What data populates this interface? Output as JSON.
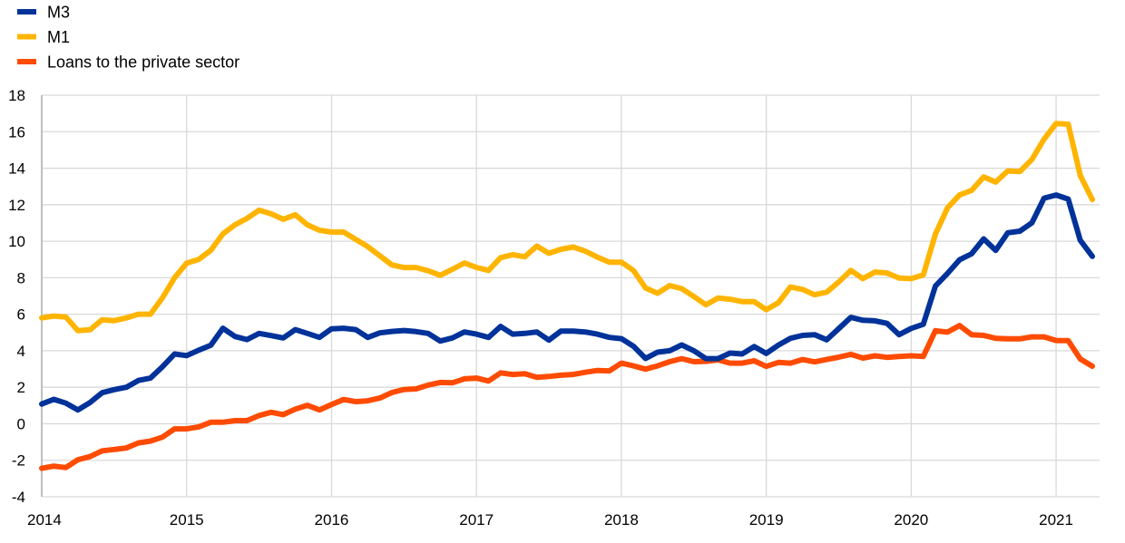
{
  "chart_data": {
    "type": "line",
    "title": "",
    "xlabel": "",
    "ylabel": "",
    "x_start": "2014-01",
    "frequency": "monthly",
    "xlim": [
      2014,
      2021.25
    ],
    "ylim": [
      -4,
      18
    ],
    "y_ticks": [
      -4,
      -2,
      0,
      2,
      4,
      6,
      8,
      10,
      12,
      14,
      16,
      18
    ],
    "x_ticks": [
      "2014",
      "2015",
      "2016",
      "2017",
      "2018",
      "2019",
      "2020",
      "2021"
    ],
    "grid": true,
    "legend_position": "top-left",
    "series": [
      {
        "name": "M3",
        "color": "#003299",
        "values": [
          1.08,
          1.34,
          1.13,
          0.76,
          1.16,
          1.7,
          1.87,
          2.0,
          2.37,
          2.5,
          3.12,
          3.82,
          3.73,
          4.03,
          4.3,
          5.23,
          4.78,
          4.61,
          4.95,
          4.83,
          4.7,
          5.16,
          4.95,
          4.73,
          5.2,
          5.23,
          5.16,
          4.73,
          4.98,
          5.06,
          5.11,
          5.05,
          4.95,
          4.53,
          4.7,
          5.03,
          4.91,
          4.73,
          5.33,
          4.91,
          4.95,
          5.03,
          4.58,
          5.08,
          5.08,
          5.03,
          4.91,
          4.73,
          4.66,
          4.25,
          3.58,
          3.92,
          4.0,
          4.32,
          4.0,
          3.57,
          3.57,
          3.87,
          3.82,
          4.23,
          3.85,
          4.31,
          4.68,
          4.84,
          4.88,
          4.6,
          5.21,
          5.83,
          5.67,
          5.64,
          5.5,
          4.88,
          5.22,
          5.45,
          7.54,
          8.23,
          8.98,
          9.31,
          10.13,
          9.5,
          10.46,
          10.55,
          11.01,
          12.36,
          12.53,
          12.31,
          10.05,
          9.17
        ]
      },
      {
        "name": "M1",
        "color": "#FFB400",
        "values": [
          5.8,
          5.9,
          5.85,
          5.1,
          5.15,
          5.7,
          5.65,
          5.8,
          6.0,
          6.0,
          6.9,
          8.0,
          8.8,
          9.0,
          9.5,
          10.4,
          10.9,
          11.25,
          11.7,
          11.5,
          11.2,
          11.45,
          10.9,
          10.6,
          10.5,
          10.5,
          10.1,
          9.7,
          9.2,
          8.7,
          8.56,
          8.56,
          8.38,
          8.13,
          8.46,
          8.81,
          8.56,
          8.4,
          9.1,
          9.26,
          9.15,
          9.73,
          9.34,
          9.56,
          9.68,
          9.46,
          9.13,
          8.85,
          8.85,
          8.4,
          7.44,
          7.15,
          7.57,
          7.4,
          6.97,
          6.52,
          6.89,
          6.82,
          6.69,
          6.69,
          6.25,
          6.63,
          7.49,
          7.36,
          7.07,
          7.21,
          7.77,
          8.4,
          7.95,
          8.31,
          8.26,
          7.98,
          7.95,
          8.15,
          10.38,
          11.82,
          12.53,
          12.78,
          13.52,
          13.24,
          13.85,
          13.82,
          14.48,
          15.59,
          16.45,
          16.41,
          13.6,
          12.28
        ]
      },
      {
        "name": "Loans to the private sector",
        "color": "#FF4B00",
        "values": [
          -2.44,
          -2.32,
          -2.4,
          -1.97,
          -1.8,
          -1.48,
          -1.41,
          -1.33,
          -1.05,
          -0.95,
          -0.73,
          -0.28,
          -0.28,
          -0.17,
          0.08,
          0.08,
          0.17,
          0.17,
          0.45,
          0.63,
          0.5,
          0.8,
          1.01,
          0.76,
          1.05,
          1.33,
          1.21,
          1.26,
          1.41,
          1.71,
          1.88,
          1.91,
          2.12,
          2.26,
          2.24,
          2.46,
          2.5,
          2.34,
          2.79,
          2.7,
          2.74,
          2.54,
          2.59,
          2.66,
          2.7,
          2.82,
          2.92,
          2.9,
          3.32,
          3.17,
          2.99,
          3.17,
          3.4,
          3.57,
          3.4,
          3.42,
          3.5,
          3.32,
          3.32,
          3.45,
          3.14,
          3.36,
          3.32,
          3.52,
          3.39,
          3.52,
          3.65,
          3.8,
          3.6,
          3.72,
          3.64,
          3.69,
          3.72,
          3.69,
          5.1,
          5.02,
          5.38,
          4.88,
          4.84,
          4.68,
          4.65,
          4.65,
          4.76,
          4.76,
          4.56,
          4.55,
          3.55,
          3.15
        ]
      }
    ]
  }
}
